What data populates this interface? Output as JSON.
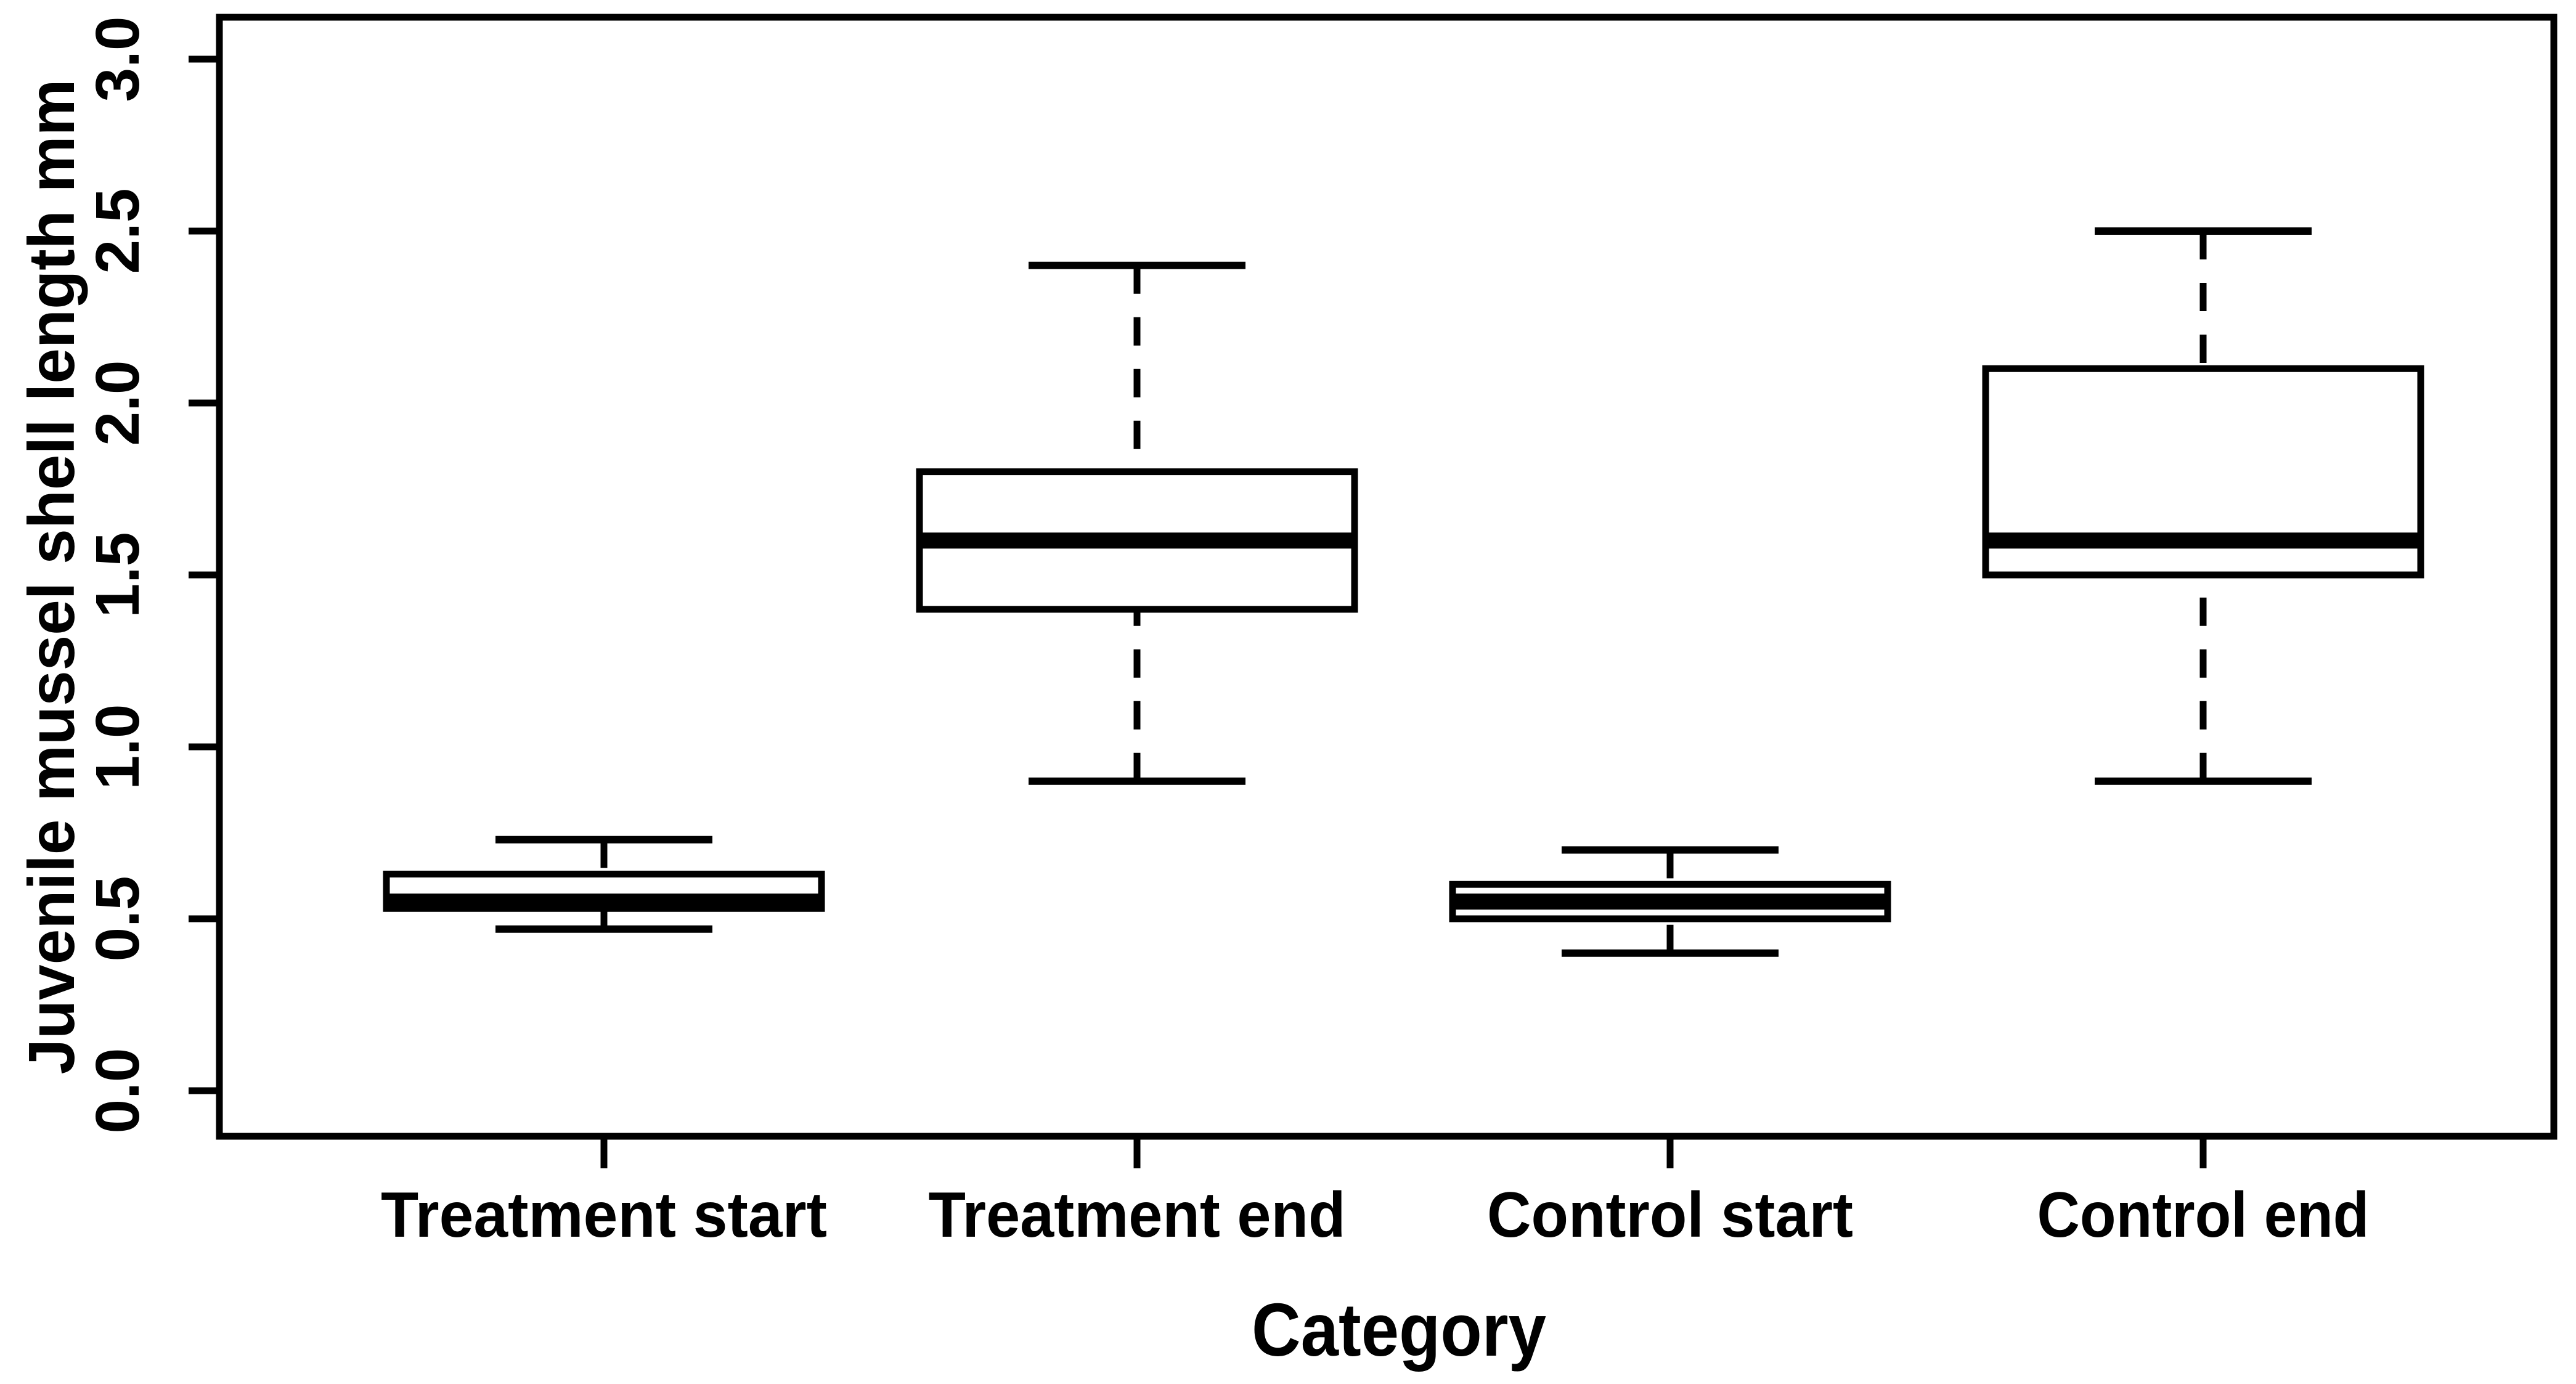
{
  "figure": {
    "background": "#ffffff",
    "ink_color": "#000000"
  },
  "chart_data": {
    "type": "boxplot",
    "title": "",
    "xlabel": "Category",
    "ylabel": "Juvenile mussel shell length mm",
    "ylim": [
      0.0,
      3.0
    ],
    "yticks": [
      0.0,
      0.5,
      1.0,
      1.5,
      2.0,
      2.5,
      3.0
    ],
    "ytick_labels": [
      "0.0",
      "0.5",
      "1.0",
      "1.5",
      "2.0",
      "2.5",
      "3.0"
    ],
    "categories": [
      "Treatment start",
      "Treatment end",
      "Control start",
      "Control end"
    ],
    "boxes": [
      {
        "category": "Treatment start",
        "whisker_low": 0.47,
        "q1": 0.53,
        "median": 0.55,
        "q3": 0.63,
        "whisker_high": 0.73
      },
      {
        "category": "Treatment end",
        "whisker_low": 0.9,
        "q1": 1.4,
        "median": 1.6,
        "q3": 1.8,
        "whisker_high": 2.4
      },
      {
        "category": "Control start",
        "whisker_low": 0.4,
        "q1": 0.5,
        "median": 0.55,
        "q3": 0.6,
        "whisker_high": 0.7
      },
      {
        "category": "Control end",
        "whisker_low": 0.9,
        "q1": 1.5,
        "median": 1.6,
        "q3": 2.1,
        "whisker_high": 2.5
      }
    ],
    "style": {
      "box_fill": "#ffffff",
      "line_color": "#000000",
      "whisker_linestyle": "dashed",
      "grid": false,
      "legend": null
    }
  }
}
